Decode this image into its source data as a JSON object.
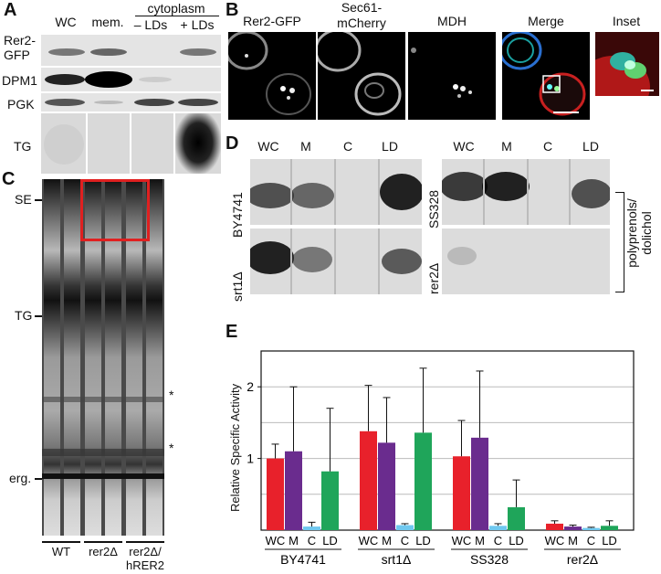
{
  "panel_labels": {
    "a": "A",
    "b": "B",
    "c": "C",
    "d": "D",
    "e": "E"
  },
  "panel_a": {
    "columns": [
      "WC",
      "mem.",
      "– LDs",
      "+ LDs"
    ],
    "cytoplasm_header": "cytoplasm",
    "rows": [
      "Rer2-\nGFP",
      "DPM1",
      "PGK",
      "TG"
    ]
  },
  "panel_b": {
    "channels": [
      "Rer2-GFP",
      "Sec61-\nmCherry",
      "MDH",
      "Merge",
      "Inset"
    ]
  },
  "panel_c": {
    "markers": [
      "SE",
      "TG",
      "erg."
    ],
    "asterisk": "*",
    "lanes": [
      "WT",
      "rer2Δ",
      "rer2Δ/\nhRER2"
    ]
  },
  "panel_d": {
    "columns": [
      "WC",
      "M",
      "C",
      "LD"
    ],
    "strains_left": [
      "BY4741",
      "srt1Δ"
    ],
    "strains_right": [
      "SS328",
      "rer2Δ"
    ],
    "bracket_label": "polyprenols/\ndolichol"
  },
  "panel_e": {
    "ylabel": "Relative Specific Activity",
    "yticks": [
      "1",
      "2"
    ],
    "fraction_labels": [
      "WC",
      "M",
      "C",
      "LD"
    ],
    "strains": [
      "BY4741",
      "srt1Δ",
      "SS328",
      "rer2Δ"
    ]
  },
  "colors": {
    "WC": "#e8212b",
    "M": "#6a2c8e",
    "C": "#6fc8ef",
    "LD": "#1fa55a",
    "box": "#e02020"
  },
  "chart_data": {
    "type": "bar",
    "title": "",
    "xlabel": "",
    "ylabel": "Relative Specific Activity",
    "ylim": [
      0,
      2.5
    ],
    "grid": true,
    "groups": [
      "BY4741",
      "srt1Δ",
      "SS328",
      "rer2Δ"
    ],
    "categories": [
      "WC",
      "M",
      "C",
      "LD"
    ],
    "series": [
      {
        "group": "BY4741",
        "values": [
          1.0,
          1.1,
          0.05,
          0.82
        ],
        "errors": [
          0.2,
          0.9,
          0.06,
          0.88
        ]
      },
      {
        "group": "srt1Δ",
        "values": [
          1.38,
          1.22,
          0.07,
          1.36
        ],
        "errors": [
          0.64,
          0.63,
          0.02,
          0.9
        ]
      },
      {
        "group": "SS328",
        "values": [
          1.03,
          1.29,
          0.06,
          0.32
        ],
        "errors": [
          0.5,
          0.93,
          0.03,
          0.38
        ]
      },
      {
        "group": "rer2Δ",
        "values": [
          0.09,
          0.05,
          0.03,
          0.06
        ],
        "errors": [
          0.04,
          0.02,
          0.01,
          0.07
        ]
      }
    ]
  }
}
